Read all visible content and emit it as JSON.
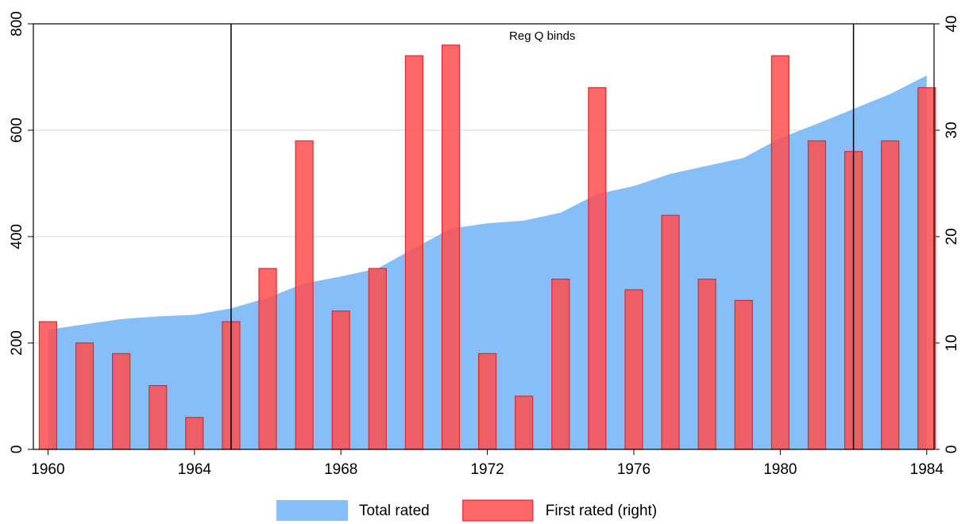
{
  "chart_data": {
    "type": "combo",
    "annotation": "Reg Q binds",
    "x": [
      1960,
      1961,
      1962,
      1963,
      1964,
      1965,
      1966,
      1967,
      1968,
      1969,
      1970,
      1971,
      1972,
      1973,
      1974,
      1975,
      1976,
      1977,
      1978,
      1979,
      1980,
      1981,
      1982,
      1983,
      1984
    ],
    "xlim": [
      1959.6,
      1984.2
    ],
    "xticks": [
      1960,
      1964,
      1968,
      1972,
      1976,
      1980,
      1984
    ],
    "ylim": [
      0,
      800
    ],
    "yticks": [
      0,
      200,
      400,
      600,
      800
    ],
    "y2lim": [
      0,
      40
    ],
    "y2ticks": [
      0,
      10,
      20,
      30,
      40
    ],
    "grid": true,
    "vlines": [
      1965,
      1982
    ],
    "legend": "bottom",
    "series": [
      {
        "name": "Total rated",
        "type": "area",
        "color": "#86bff8",
        "values": [
          225,
          235,
          245,
          250,
          253,
          265,
          285,
          312,
          325,
          340,
          378,
          415,
          425,
          430,
          445,
          480,
          495,
          518,
          533,
          548,
          585,
          612,
          640,
          668,
          703
        ]
      },
      {
        "name": "First rated (right)",
        "type": "bar",
        "axis": "y2",
        "color": "#ff4d4d",
        "values": [
          12,
          10,
          9,
          6,
          3,
          12,
          17,
          29,
          13,
          17,
          37,
          38,
          9,
          5,
          16,
          34,
          15,
          22,
          16,
          14,
          37,
          29,
          28,
          29,
          34
        ]
      }
    ]
  }
}
